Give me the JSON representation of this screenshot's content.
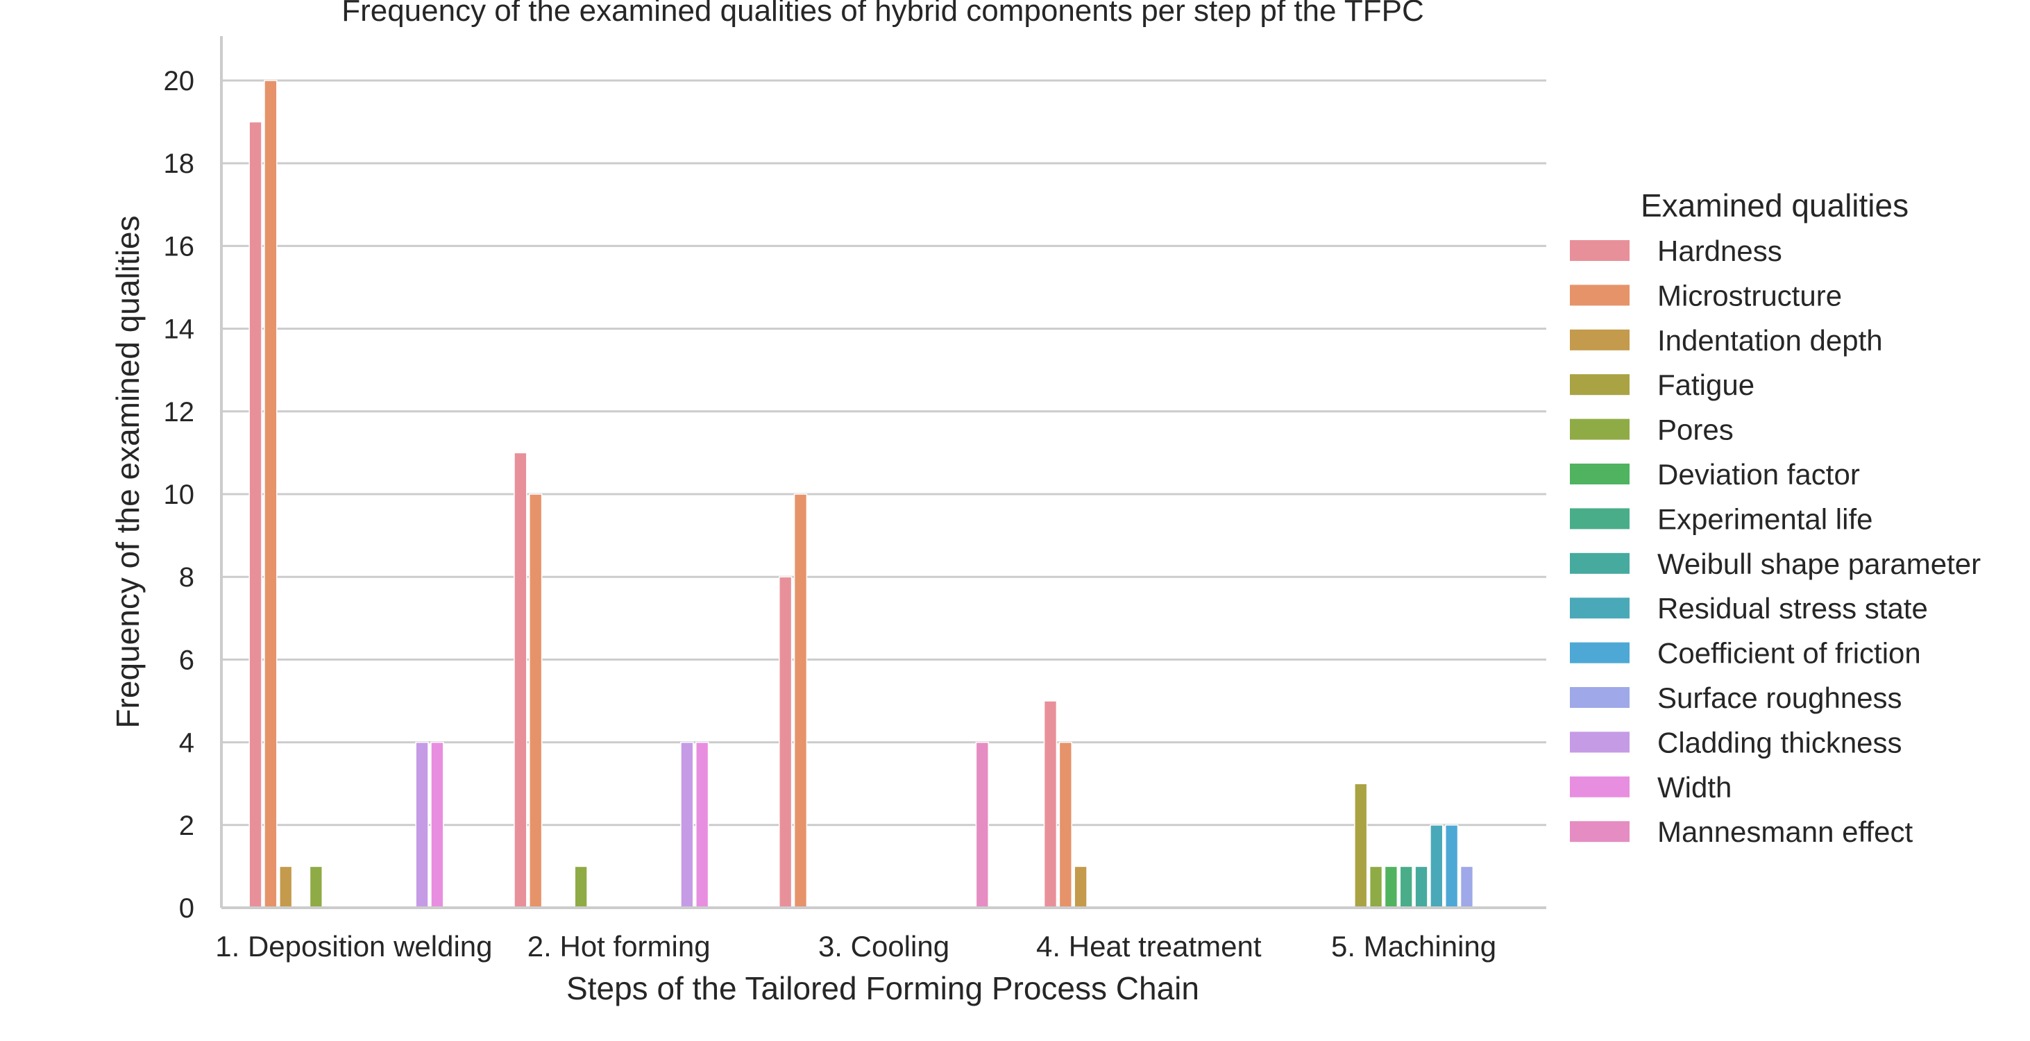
{
  "chart_data": {
    "type": "bar",
    "title": "Frequency of the examined qualities of hybrid components per step pf the TFPC",
    "xlabel": "Steps of the Tailored Forming Process Chain",
    "ylabel": "Frequency of the examined qualities",
    "ylim": [
      0,
      21
    ],
    "yticks": [
      0,
      2,
      4,
      6,
      8,
      10,
      12,
      14,
      16,
      18,
      20
    ],
    "grid": true,
    "legend_title": "Examined qualities",
    "legend_position": "right",
    "categories": [
      "1. Deposition welding",
      "2. Hot forming",
      "3. Cooling",
      "4. Heat treatment",
      "5. Machining"
    ],
    "series": [
      {
        "name": "Hardness",
        "color": "#e8909a",
        "values": [
          19,
          11,
          8,
          5,
          0
        ]
      },
      {
        "name": "Microstructure",
        "color": "#e6936a",
        "values": [
          20,
          10,
          10,
          4,
          0
        ]
      },
      {
        "name": "Indentation depth",
        "color": "#c49a4c",
        "values": [
          1,
          0,
          0,
          1,
          0
        ]
      },
      {
        "name": "Fatigue",
        "color": "#a9a343",
        "values": [
          0,
          0,
          0,
          0,
          3
        ]
      },
      {
        "name": "Pores",
        "color": "#8fab46",
        "values": [
          1,
          1,
          0,
          0,
          1
        ]
      },
      {
        "name": "Deviation factor",
        "color": "#4fb35f",
        "values": [
          0,
          0,
          0,
          0,
          1
        ]
      },
      {
        "name": "Experimental life",
        "color": "#4aad8a",
        "values": [
          0,
          0,
          0,
          0,
          1
        ]
      },
      {
        "name": "Weibull shape parameter",
        "color": "#46aa9f",
        "values": [
          0,
          0,
          0,
          0,
          1
        ]
      },
      {
        "name": "Residual stress state",
        "color": "#4aa9b8",
        "values": [
          0,
          0,
          0,
          0,
          2
        ]
      },
      {
        "name": "Coefficient of friction",
        "color": "#4ea8d6",
        "values": [
          0,
          0,
          0,
          0,
          2
        ]
      },
      {
        "name": "Surface roughness",
        "color": "#9fa8e8",
        "values": [
          0,
          0,
          0,
          0,
          1
        ]
      },
      {
        "name": "Cladding thickness",
        "color": "#c59be6",
        "values": [
          4,
          4,
          0,
          0,
          0
        ]
      },
      {
        "name": "Width",
        "color": "#e88ee0",
        "values": [
          4,
          4,
          0,
          0,
          0
        ]
      },
      {
        "name": "Mannesmann effect",
        "color": "#e58dc2",
        "values": [
          0,
          0,
          4,
          0,
          0
        ]
      }
    ]
  }
}
